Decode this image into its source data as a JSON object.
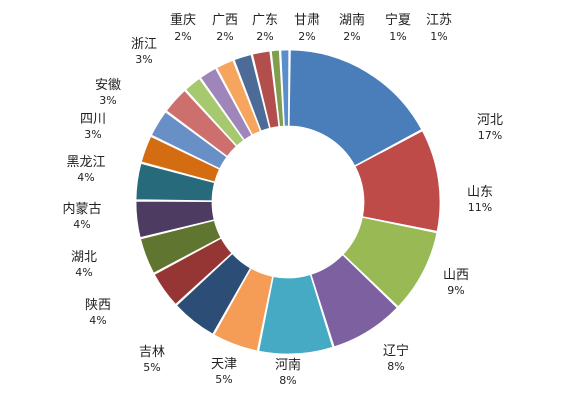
{
  "chart_data": {
    "type": "pie",
    "donut": true,
    "title": "",
    "categories": [
      "河北",
      "山东",
      "山西",
      "辽宁",
      "河南",
      "天津",
      "吉林",
      "陕西",
      "湖北",
      "内蒙古",
      "黑龙江",
      "四川",
      "安徽",
      "浙江",
      "重庆",
      "广西",
      "广东",
      "甘肃",
      "湖南",
      "宁夏",
      "江苏"
    ],
    "values": [
      17,
      11,
      9,
      8,
      8,
      5,
      5,
      4,
      4,
      4,
      4,
      3,
      3,
      3,
      2,
      2,
      2,
      2,
      2,
      1,
      1
    ],
    "value_labels": [
      "17%",
      "11%",
      "9%",
      "8%",
      "8%",
      "5%",
      "5%",
      "4%",
      "4%",
      "4%",
      "4%",
      "3%",
      "3%",
      "3%",
      "2%",
      "2%",
      "2%",
      "2%",
      "2%",
      "1%",
      "1%"
    ],
    "colors": [
      "#4A7EBB",
      "#BE4B48",
      "#98B954",
      "#7D60A0",
      "#46AAC5",
      "#F59D56",
      "#2C4D75",
      "#963634",
      "#5F7530",
      "#4D3B62",
      "#276A7C",
      "#D46C11",
      "#698FC7",
      "#CD6F6D",
      "#A6C86E",
      "#9F86BA",
      "#F5A55E",
      "#4C6B96",
      "#B24F4C",
      "#7F9E4E",
      "#5B8FCB"
    ],
    "legend": "none"
  }
}
